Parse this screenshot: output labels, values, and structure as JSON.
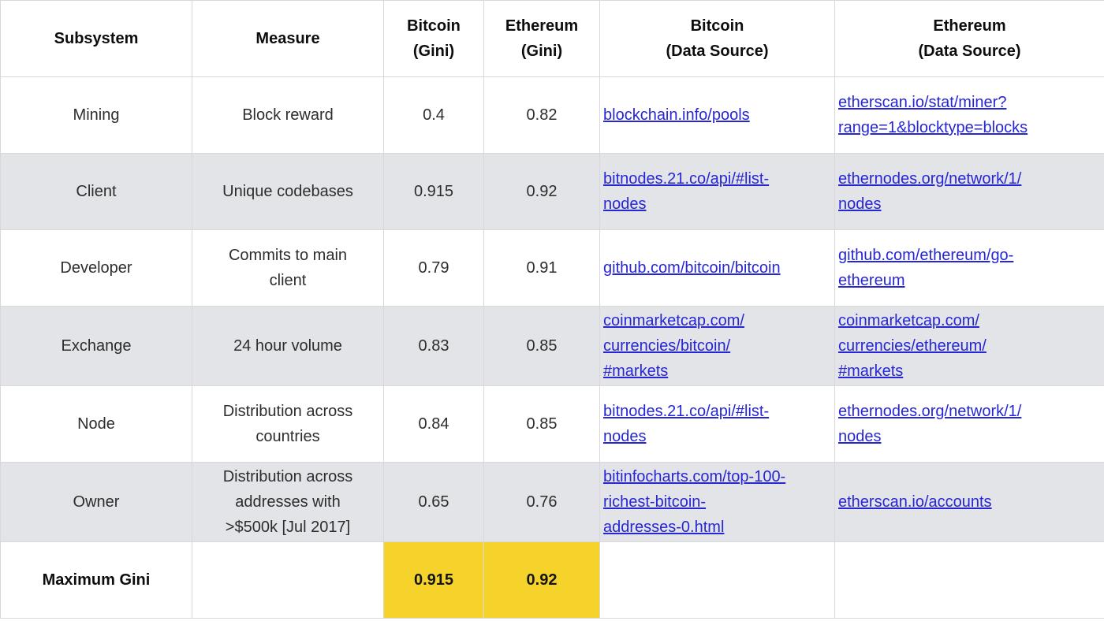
{
  "colors": {
    "highlight_yellow": "#f5d32b",
    "link_blue": "#2626d4",
    "stripe_gray": "#e3e4e7",
    "border_gray": "#d8d8d8"
  },
  "display": {
    "header": {
      "subsystem": "Subsystem",
      "measure": "Measure",
      "bitcoin_gini": "Bitcoin\n(Gini)",
      "ethereum_gini": "Ethereum\n(Gini)",
      "bitcoin_source": "Bitcoin\n(Data Source)",
      "ethereum_source": "Ethereum\n(Data Source)"
    },
    "rows": [
      {
        "subsystem": "Mining",
        "measure": "Block reward",
        "bitcoin_gini": "0.4",
        "ethereum_gini": "0.82",
        "bitcoin_source": "blockchain.info/pools",
        "ethereum_source": "etherscan.io/stat/miner?\nrange=1&blocktype=blocks"
      },
      {
        "subsystem": "Client",
        "measure": "Unique codebases",
        "bitcoin_gini": "0.915",
        "ethereum_gini": "0.92",
        "bitcoin_source": "bitnodes.21.co/api/#list-\nnodes",
        "ethereum_source": "ethernodes.org/network/1/\nnodes"
      },
      {
        "subsystem": "Developer",
        "measure": "Commits to main\nclient",
        "bitcoin_gini": "0.79",
        "ethereum_gini": "0.91",
        "bitcoin_source": "github.com/bitcoin/bitcoin",
        "ethereum_source": "github.com/ethereum/go-\nethereum"
      },
      {
        "subsystem": "Exchange",
        "measure": "24 hour volume",
        "bitcoin_gini": "0.83",
        "ethereum_gini": "0.85",
        "bitcoin_source": "coinmarketcap.com/\ncurrencies/bitcoin/\n#markets",
        "ethereum_source": "coinmarketcap.com/\ncurrencies/ethereum/\n#markets"
      },
      {
        "subsystem": "Node",
        "measure": "Distribution across\ncountries",
        "bitcoin_gini": "0.84",
        "ethereum_gini": "0.85",
        "bitcoin_source": "bitnodes.21.co/api/#list-\nnodes",
        "ethereum_source": "ethernodes.org/network/1/\nnodes"
      },
      {
        "subsystem": "Owner",
        "measure": "Distribution across\naddresses with\n>$500k [Jul 2017]",
        "bitcoin_gini": "0.65",
        "ethereum_gini": "0.76",
        "bitcoin_source": "bitinfocharts.com/top-100-\nrichest-bitcoin-\naddresses-0.html",
        "ethereum_source": "etherscan.io/accounts"
      }
    ],
    "footer": {
      "label": "Maximum Gini",
      "bitcoin_gini": "0.915",
      "ethereum_gini": "0.92"
    }
  },
  "chart_data": {
    "type": "table",
    "columns": [
      "Subsystem",
      "Measure",
      "Bitcoin (Gini)",
      "Ethereum (Gini)",
      "Bitcoin (Data Source)",
      "Ethereum (Data Source)"
    ],
    "rows": [
      {
        "subsystem": "Mining",
        "measure": "Block reward",
        "bitcoin_gini": 0.4,
        "ethereum_gini": 0.82,
        "bitcoin_source": "blockchain.info/pools",
        "ethereum_source": "etherscan.io/stat/miner?range=1&blocktype=blocks"
      },
      {
        "subsystem": "Client",
        "measure": "Unique codebases",
        "bitcoin_gini": 0.915,
        "ethereum_gini": 0.92,
        "bitcoin_source": "bitnodes.21.co/api/#list-nodes",
        "ethereum_source": "ethernodes.org/network/1/nodes"
      },
      {
        "subsystem": "Developer",
        "measure": "Commits to main client",
        "bitcoin_gini": 0.79,
        "ethereum_gini": 0.91,
        "bitcoin_source": "github.com/bitcoin/bitcoin",
        "ethereum_source": "github.com/ethereum/go-ethereum"
      },
      {
        "subsystem": "Exchange",
        "measure": "24 hour volume",
        "bitcoin_gini": 0.83,
        "ethereum_gini": 0.85,
        "bitcoin_source": "coinmarketcap.com/currencies/bitcoin/#markets",
        "ethereum_source": "coinmarketcap.com/currencies/ethereum/#markets"
      },
      {
        "subsystem": "Node",
        "measure": "Distribution across countries",
        "bitcoin_gini": 0.84,
        "ethereum_gini": 0.85,
        "bitcoin_source": "bitnodes.21.co/api/#list-nodes",
        "ethereum_source": "ethernodes.org/network/1/nodes"
      },
      {
        "subsystem": "Owner",
        "measure": "Distribution across addresses with >$500k [Jul 2017]",
        "bitcoin_gini": 0.65,
        "ethereum_gini": 0.76,
        "bitcoin_source": "bitinfocharts.com/top-100-richest-bitcoin-addresses-0.html",
        "ethereum_source": "etherscan.io/accounts"
      }
    ],
    "max_gini": {
      "label": "Maximum Gini",
      "bitcoin": 0.915,
      "ethereum": 0.92,
      "highlighted": true
    }
  }
}
